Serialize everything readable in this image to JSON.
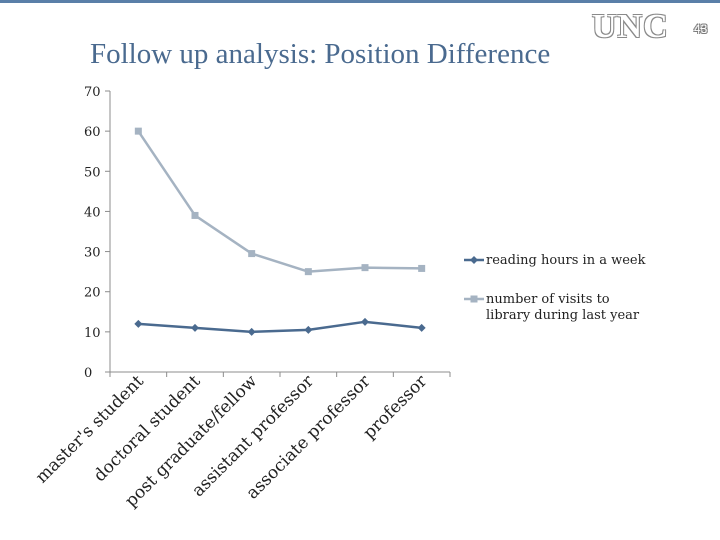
{
  "slide": {
    "title": "Follow up analysis: Position Difference",
    "logo_text": "UNC",
    "slide_number": "43"
  },
  "colors": {
    "series1": "#4a6a8f",
    "series2": "#a5b3c2",
    "axis": "#8c8c8c",
    "title": "#4a6a8f"
  },
  "chart_data": {
    "type": "line",
    "title": "",
    "xlabel": "",
    "ylabel": "",
    "ylim": [
      0,
      70
    ],
    "yticks": [
      0,
      10,
      20,
      30,
      40,
      50,
      60,
      70
    ],
    "grid": false,
    "legend_position": "right",
    "categories": [
      "master's student",
      "doctoral student",
      "post graduate/fellow",
      "assistant professor",
      "associate professor",
      "professor"
    ],
    "series": [
      {
        "name": "reading hours in a week",
        "marker": "diamond",
        "values": [
          12,
          11,
          10,
          10.5,
          12.5,
          11
        ]
      },
      {
        "name": "number of visits to library during last year",
        "marker": "square",
        "values": [
          60,
          39,
          29.5,
          25,
          26,
          25.8
        ]
      }
    ]
  }
}
